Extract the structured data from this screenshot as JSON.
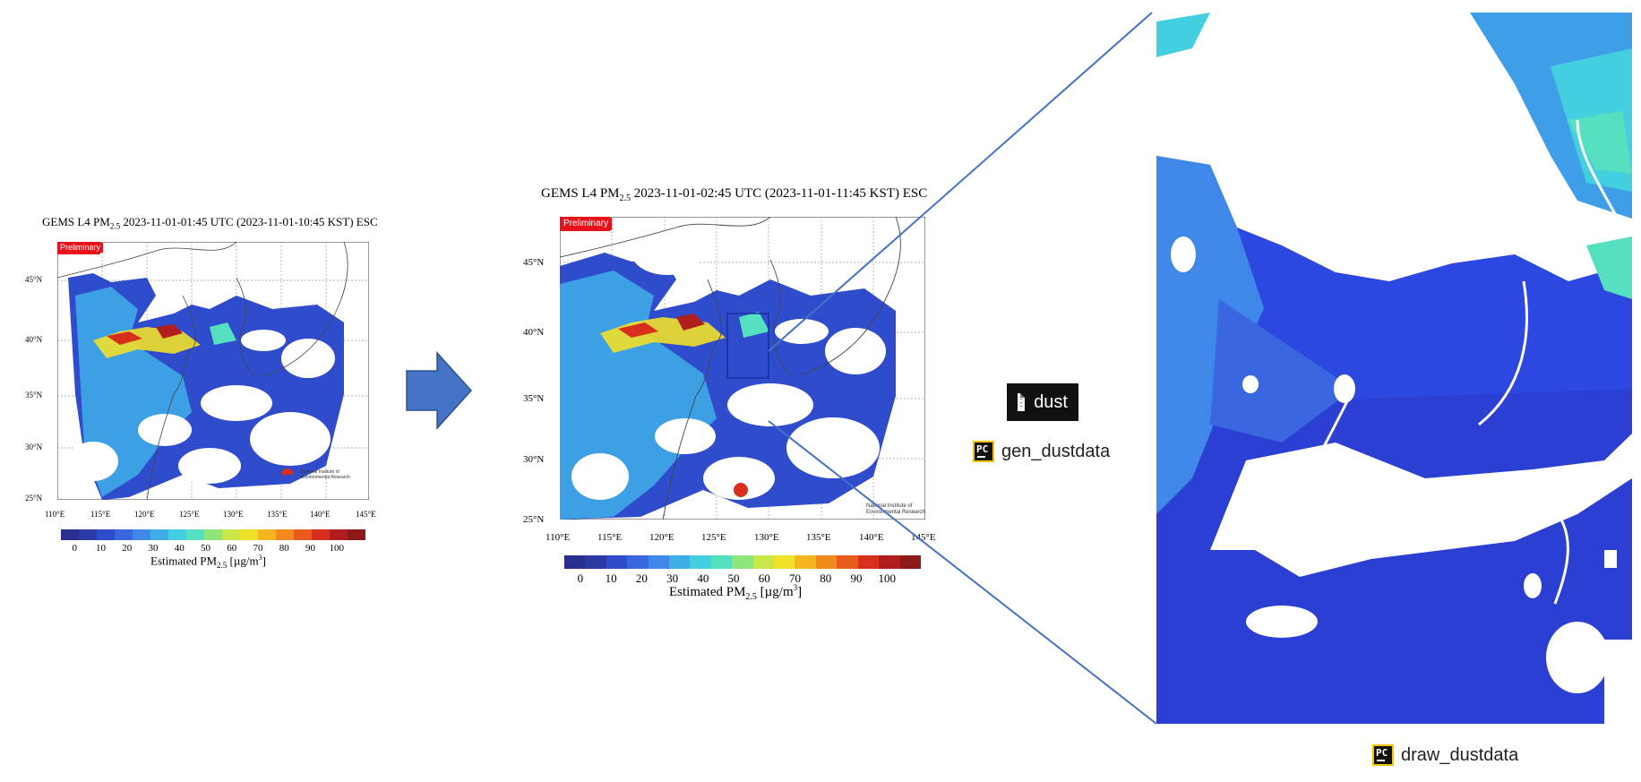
{
  "map1": {
    "title_prefix": "GEMS L4 PM",
    "title_sub": "2.5",
    "title_suffix": " 2023-11-01-01:45 UTC (2023-11-01-10:45 KST) ESC",
    "badge": "Preliminary",
    "lat_labels": [
      "45°N",
      "40°N",
      "35°N",
      "30°N",
      "25°N"
    ],
    "lon_labels": [
      "110°E",
      "115°E",
      "120°E",
      "125°E",
      "130°E",
      "135°E",
      "140°E",
      "145°E"
    ],
    "colorbar_ticks": [
      "0",
      "10",
      "20",
      "30",
      "40",
      "50",
      "60",
      "70",
      "80",
      "90",
      "100"
    ],
    "colorbar_label_prefix": "Estimated PM",
    "colorbar_label_sub": "2.5",
    "colorbar_label_suffix": " [µg/m",
    "colorbar_label_sup": "3",
    "colorbar_label_end": "]",
    "institute_line1": "National Institute of",
    "institute_line2": "Environmental Research"
  },
  "map2": {
    "title_prefix": "GEMS L4 PM",
    "title_sub": "2.5",
    "title_suffix": " 2023-11-01-02:45 UTC (2023-11-01-11:45 KST) ESC",
    "badge": "Preliminary",
    "lat_labels": [
      "45°N",
      "40°N",
      "35°N",
      "30°N",
      "25°N"
    ],
    "lon_labels": [
      "110°E",
      "115°E",
      "120°E",
      "125°E",
      "130°E",
      "135°E",
      "140°E",
      "145°E"
    ],
    "colorbar_ticks": [
      "0",
      "10",
      "20",
      "30",
      "40",
      "50",
      "60",
      "70",
      "80",
      "90",
      "100"
    ],
    "colorbar_label_prefix": "Estimated PM",
    "colorbar_label_sub": "2.5",
    "colorbar_label_suffix": " [µg/m",
    "colorbar_label_sup": "3",
    "colorbar_label_end": "]",
    "institute_line1": "National Institute of",
    "institute_line2": "Environmental Research"
  },
  "files": {
    "dust": "dust",
    "gen_dustdata": "gen_dustdata",
    "draw_dustdata": "draw_dustdata",
    "pc_icon_text": "PC"
  },
  "colors": {
    "arrow": "#4472c4",
    "connector": "#4472c4",
    "zoom_box": "#1a2c9c",
    "badge": "#e8121b",
    "colorbar": [
      "#2a2e8c",
      "#2c3aa6",
      "#2f4ccc",
      "#3a66e0",
      "#3f88ea",
      "#3faee8",
      "#44cfe0",
      "#55e0c0",
      "#8fe57a",
      "#c8e84a",
      "#f0e02a",
      "#f5b51f",
      "#f08a1c",
      "#e85a1c",
      "#d6301c",
      "#b01e1e",
      "#8c1a1a"
    ]
  }
}
